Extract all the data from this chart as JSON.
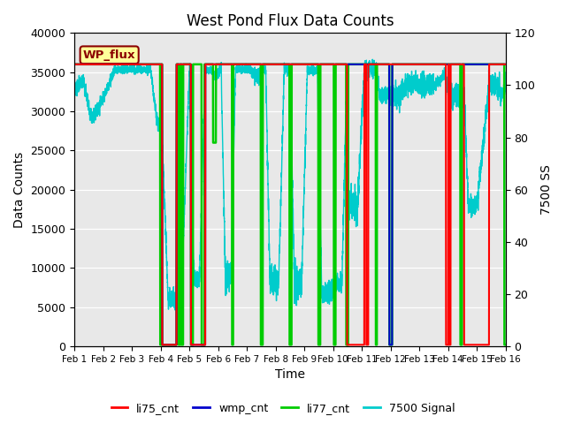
{
  "title": "West Pond Flux Data Counts",
  "xlabel": "Time",
  "ylabel_left": "Data Counts",
  "ylabel_right": "7500 SS",
  "ylim_left": [
    0,
    40000
  ],
  "ylim_right": [
    0,
    120
  ],
  "xtick_labels": [
    "Feb 1",
    "Feb 2",
    "Feb 3",
    "Feb 4",
    "Feb 5",
    "Feb 6",
    "Feb 7",
    "Feb 8",
    "Feb 9",
    "Feb 10",
    "Feb 11",
    "Feb 12",
    "Feb 13",
    "Feb 14",
    "Feb 15",
    "Feb 16"
  ],
  "wp_flux_box_color": "#ffff99",
  "wp_flux_text_color": "#8b0000",
  "plot_bg_color": "#e8e8e8",
  "colors": {
    "li75_cnt": "#ff0000",
    "wmp_cnt": "#0000cc",
    "li77_cnt": "#00cc00",
    "signal": "#00cccc"
  }
}
